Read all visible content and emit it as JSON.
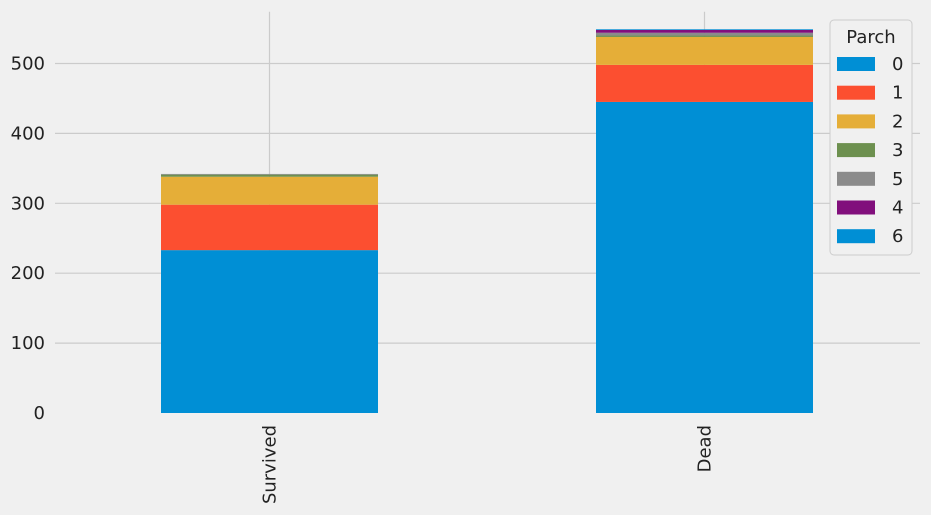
{
  "chart_data": {
    "type": "bar",
    "stacked": true,
    "categories": [
      "Survived",
      "Dead"
    ],
    "series": [
      {
        "name": "0",
        "color": "#008fd5",
        "values": [
          233,
          445
        ]
      },
      {
        "name": "1",
        "color": "#fc4f30",
        "values": [
          65,
          53
        ]
      },
      {
        "name": "2",
        "color": "#e5ae38",
        "values": [
          40,
          40
        ]
      },
      {
        "name": "3",
        "color": "#6d904f",
        "values": [
          3,
          2
        ]
      },
      {
        "name": "5",
        "color": "#8b8b8b",
        "values": [
          1,
          4
        ]
      },
      {
        "name": "4",
        "color": "#810f7c",
        "values": [
          0,
          4
        ]
      },
      {
        "name": "6",
        "color": "#008fd5",
        "values": [
          0,
          1
        ]
      }
    ],
    "yticks": [
      0,
      100,
      200,
      300,
      400,
      500
    ],
    "ylim": [
      0,
      574
    ],
    "grid": true,
    "legend": {
      "title": "Parch",
      "placement": "top-right"
    },
    "xlabel": "",
    "ylabel": "",
    "title": ""
  }
}
